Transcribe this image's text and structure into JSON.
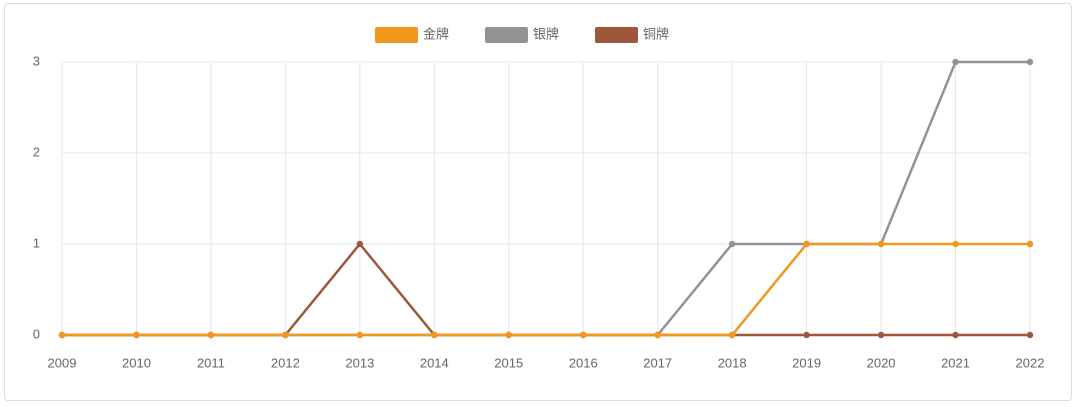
{
  "chart_data": {
    "type": "line",
    "categories": [
      "2009",
      "2010",
      "2011",
      "2012",
      "2013",
      "2014",
      "2015",
      "2016",
      "2017",
      "2018",
      "2019",
      "2020",
      "2021",
      "2022"
    ],
    "series": [
      {
        "name": "金牌",
        "color": "#f0981e",
        "values": [
          0,
          0,
          0,
          0,
          0,
          0,
          0,
          0,
          0,
          0,
          1,
          1,
          1,
          1
        ]
      },
      {
        "name": "银牌",
        "color": "#939393",
        "values": [
          0,
          0,
          0,
          0,
          0,
          0,
          0,
          0,
          0,
          1,
          1,
          1,
          3,
          3
        ]
      },
      {
        "name": "铜牌",
        "color": "#9e573a",
        "values": [
          0,
          0,
          0,
          0,
          1,
          0,
          0,
          0,
          0,
          0,
          0,
          0,
          0,
          0
        ]
      }
    ],
    "ylim": [
      0,
      3
    ],
    "yticks": [
      0,
      1,
      2,
      3
    ],
    "grid": true,
    "legend": "top"
  }
}
